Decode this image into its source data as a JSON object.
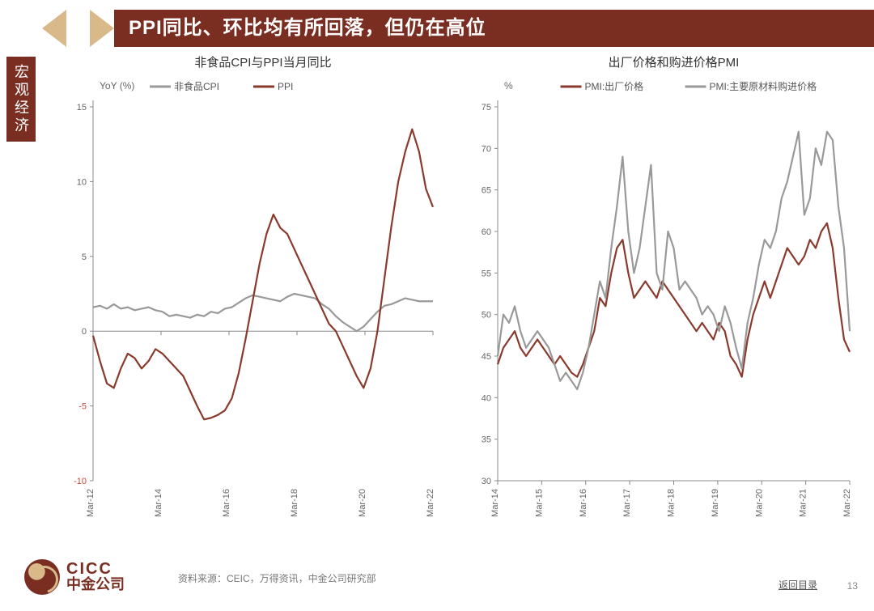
{
  "header": {
    "title": "PPI同比、环比均有所回落，但仍在高位",
    "sidetab": "宏观经济"
  },
  "footer": {
    "logo_en": "CICC",
    "logo_cn": "中金公司",
    "source": "资料来源：CEIC，万得资讯，中金公司研究部",
    "back": "返回目录",
    "pagenum": "13"
  },
  "chart_left": {
    "type": "line",
    "title": "非食品CPI与PPI当月同比",
    "axis_unit": "YoY (%)",
    "x_ticks": [
      "Mar-12",
      "Mar-14",
      "Mar-16",
      "Mar-18",
      "Mar-20",
      "Mar-22"
    ],
    "ylim": [
      -10,
      15
    ],
    "ytick_step": 5,
    "title_fontsize": 15,
    "axis_fontsize": 12,
    "tick_fontsize": 11,
    "background_color": "#ffffff",
    "legend": {
      "items": [
        {
          "label": "非食品CPI",
          "color": "#999999"
        },
        {
          "label": "PPI",
          "color": "#8a3a2c"
        }
      ],
      "pos": "top-center"
    },
    "line_width": 2.2,
    "series": [
      {
        "name": "非食品CPI",
        "color": "#999999",
        "y": [
          1.6,
          1.7,
          1.5,
          1.8,
          1.5,
          1.6,
          1.4,
          1.5,
          1.6,
          1.4,
          1.3,
          1.0,
          1.1,
          1.0,
          0.9,
          1.1,
          1.0,
          1.3,
          1.2,
          1.5,
          1.6,
          1.9,
          2.2,
          2.4,
          2.3,
          2.2,
          2.1,
          2.0,
          2.3,
          2.5,
          2.4,
          2.3,
          2.2,
          1.8,
          1.5,
          1.0,
          0.6,
          0.3,
          0.0,
          0.3,
          0.8,
          1.3,
          1.7,
          1.8,
          2.0,
          2.2,
          2.1,
          2.0,
          2.0,
          2.0
        ]
      },
      {
        "name": "PPI",
        "color": "#8a3a2c",
        "y": [
          -0.3,
          -2.0,
          -3.5,
          -3.8,
          -2.5,
          -1.5,
          -1.8,
          -2.5,
          -2.0,
          -1.2,
          -1.5,
          -2.0,
          -2.5,
          -3.0,
          -4.0,
          -5.0,
          -5.9,
          -5.8,
          -5.6,
          -5.3,
          -4.5,
          -2.8,
          -0.5,
          2.0,
          4.5,
          6.5,
          7.8,
          6.9,
          6.5,
          5.5,
          4.5,
          3.5,
          2.5,
          1.5,
          0.5,
          0.0,
          -1.0,
          -2.0,
          -3.0,
          -3.8,
          -2.5,
          0.0,
          3.5,
          7.0,
          10.0,
          12.0,
          13.5,
          12.0,
          9.5,
          8.3
        ]
      }
    ]
  },
  "chart_right": {
    "type": "line",
    "title": "出厂价格和购进价格PMI",
    "axis_unit": "%",
    "x_ticks": [
      "Mar-14",
      "Mar-15",
      "Mar-16",
      "Mar-17",
      "Mar-18",
      "Mar-19",
      "Mar-20",
      "Mar-21",
      "Mar-22"
    ],
    "ylim": [
      30,
      75
    ],
    "ytick_step": 5,
    "title_fontsize": 15,
    "axis_fontsize": 12,
    "tick_fontsize": 11,
    "background_color": "#ffffff",
    "legend": {
      "items": [
        {
          "label": "PMI:出厂价格",
          "color": "#8a3a2c"
        },
        {
          "label": "PMI:主要原材料购进价格",
          "color": "#999999"
        }
      ],
      "pos": "top-center"
    },
    "line_width": 2.2,
    "series": [
      {
        "name": "PMI:出厂价格",
        "color": "#8a3a2c",
        "y": [
          44,
          46,
          47,
          48,
          46,
          45,
          46,
          47,
          46,
          45,
          44,
          45,
          44,
          43,
          42.5,
          44,
          46,
          48,
          52,
          51,
          55,
          58,
          59,
          55,
          52,
          53,
          54,
          53,
          52,
          54,
          53,
          52,
          51,
          50,
          49,
          48,
          49,
          48,
          47,
          49,
          48,
          45,
          44,
          42.5,
          47,
          50,
          52,
          54,
          52,
          54,
          56,
          58,
          57,
          56,
          57,
          59,
          58,
          60,
          61,
          58,
          52,
          47,
          45.5
        ]
      },
      {
        "name": "PMI:主要原材料购进价格",
        "color": "#999999",
        "y": [
          45,
          50,
          49,
          51,
          48,
          46,
          47,
          48,
          47,
          46,
          44,
          42,
          43,
          42,
          41,
          43,
          46,
          50,
          54,
          52,
          58,
          63,
          69,
          60,
          55,
          58,
          63,
          68,
          55,
          53,
          60,
          58,
          53,
          54,
          53,
          52,
          50,
          51,
          50,
          48,
          51,
          49,
          46,
          43.5,
          49,
          52,
          56,
          59,
          58,
          60,
          64,
          66,
          69,
          72,
          62,
          64,
          70,
          68,
          72,
          71,
          63,
          58,
          48
        ]
      }
    ]
  }
}
